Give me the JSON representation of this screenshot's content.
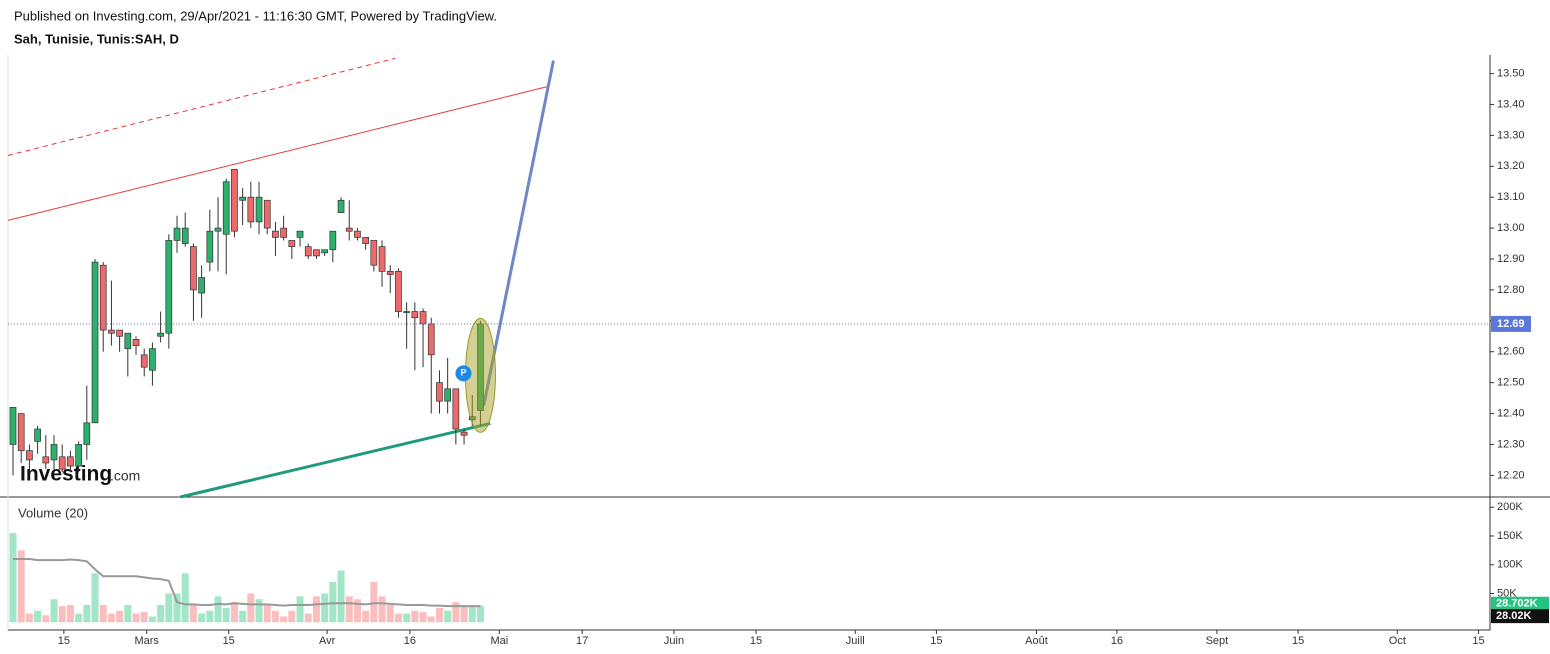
{
  "header": {
    "published": "Published on Investing.com, 29/Apr/2021 - 11:16:30 GMT, Powered by TradingView.",
    "symbol": "Sah, Tunisie, Tunis:SAH, D"
  },
  "logo": {
    "name": "Investing",
    "suffix": ".com"
  },
  "chart_data": [
    {
      "type": "candlestick",
      "up_color": "#2db06c",
      "down_color": "#ee6a6a",
      "last_price_color": "#5b78d8",
      "x": [
        0,
        1,
        2,
        3,
        4,
        5,
        6,
        7,
        8,
        9,
        10,
        11,
        12,
        13,
        14,
        15,
        16,
        17,
        18,
        19,
        20,
        21,
        22,
        23,
        24,
        25,
        26,
        27,
        28,
        29,
        30,
        31,
        32,
        33,
        34,
        35,
        36,
        37,
        38,
        39,
        40,
        41,
        42,
        43,
        44,
        45,
        46,
        47,
        48,
        49,
        50,
        51,
        52,
        53,
        54,
        55,
        56,
        57
      ],
      "open": [
        12.3,
        12.4,
        12.28,
        12.31,
        12.26,
        12.25,
        12.26,
        12.26,
        12.23,
        12.3,
        12.37,
        12.88,
        12.67,
        12.67,
        12.61,
        12.64,
        12.59,
        12.54,
        12.65,
        12.66,
        12.96,
        12.95,
        12.94,
        12.79,
        12.89,
        12.99,
        12.98,
        13.19,
        13.09,
        13.1,
        13.02,
        13.09,
        12.99,
        13.0,
        12.96,
        12.97,
        12.94,
        12.93,
        12.92,
        12.93,
        13.05,
        13.0,
        12.99,
        12.97,
        12.96,
        12.94,
        12.86,
        12.86,
        12.73,
        12.73,
        12.73,
        12.69,
        12.5,
        12.44,
        12.48,
        12.34,
        12.38,
        12.41
      ],
      "high": [
        12.42,
        12.4,
        12.3,
        12.36,
        12.33,
        12.33,
        12.3,
        12.28,
        12.31,
        12.49,
        12.9,
        12.89,
        12.83,
        12.67,
        12.66,
        12.65,
        12.61,
        12.63,
        12.73,
        12.98,
        13.04,
        13.05,
        12.95,
        12.88,
        13.06,
        13.1,
        13.16,
        13.19,
        13.13,
        13.15,
        13.15,
        13.09,
        13.02,
        13.04,
        12.96,
        12.99,
        12.95,
        12.93,
        12.93,
        12.99,
        13.1,
        13.09,
        13.0,
        12.97,
        12.96,
        12.96,
        12.88,
        12.87,
        12.76,
        12.76,
        12.74,
        12.71,
        12.54,
        12.58,
        12.48,
        12.35,
        12.46,
        12.7
      ],
      "low": [
        12.2,
        12.24,
        12.22,
        12.27,
        12.22,
        12.22,
        12.21,
        12.21,
        12.21,
        12.25,
        12.37,
        12.6,
        12.62,
        12.6,
        12.52,
        12.59,
        12.52,
        12.49,
        12.63,
        12.61,
        12.92,
        12.94,
        12.7,
        12.71,
        12.86,
        12.86,
        12.85,
        12.97,
        13.01,
        13.0,
        12.98,
        12.98,
        12.91,
        12.96,
        12.9,
        12.94,
        12.9,
        12.9,
        12.91,
        12.89,
        13.05,
        12.96,
        12.96,
        12.93,
        12.86,
        12.81,
        12.79,
        12.71,
        12.61,
        12.54,
        12.55,
        12.4,
        12.4,
        12.4,
        12.3,
        12.3,
        12.36,
        12.36
      ],
      "close": [
        12.42,
        12.28,
        12.25,
        12.35,
        12.24,
        12.3,
        12.22,
        12.23,
        12.3,
        12.37,
        12.89,
        12.67,
        12.66,
        12.65,
        12.66,
        12.62,
        12.55,
        12.61,
        12.66,
        12.96,
        13.0,
        13.0,
        12.8,
        12.84,
        12.99,
        13.0,
        13.15,
        12.99,
        13.1,
        13.02,
        13.1,
        13.0,
        12.97,
        12.97,
        12.94,
        12.99,
        12.91,
        12.91,
        12.93,
        12.99,
        13.09,
        12.99,
        12.97,
        12.95,
        12.88,
        12.86,
        12.85,
        12.73,
        12.73,
        12.71,
        12.69,
        12.59,
        12.44,
        12.48,
        12.35,
        12.33,
        12.39,
        12.69
      ],
      "trend_lines": [
        {
          "color": "#e53935",
          "dashed": false,
          "width": 1,
          "x": [
            -0.61,
            65.2
          ],
          "y": [
            13.025,
            13.458
          ]
        },
        {
          "color": "#e53935",
          "dashed": true,
          "width": 1,
          "x": [
            -0.61,
            46.6
          ],
          "y": [
            13.235,
            13.549
          ]
        },
        {
          "color": "#1f9a7e",
          "dashed": false,
          "width": 3,
          "x": [
            20.4,
            58.2
          ],
          "y": [
            12.13,
            12.368
          ]
        },
        {
          "color": "#6f86c8",
          "dashed": false,
          "width": 3,
          "x": [
            57.4,
            65.9
          ],
          "y": [
            12.426,
            13.542
          ]
        }
      ],
      "xlim": [
        -0.61,
        180.1
      ],
      "ylim": [
        12.13,
        13.56
      ],
      "yticks": [
        {
          "value": 12.2,
          "label": "12.20"
        },
        {
          "value": 12.3,
          "label": "12.30"
        },
        {
          "value": 12.4,
          "label": "12.40"
        },
        {
          "value": 12.5,
          "label": "12.50"
        },
        {
          "value": 12.6,
          "label": "12.60"
        },
        {
          "value": 12.7,
          "label": "12.70"
        },
        {
          "value": 12.8,
          "label": "12.80"
        },
        {
          "value": 12.9,
          "label": "12.90"
        },
        {
          "value": 13.0,
          "label": "13.00"
        },
        {
          "value": 13.1,
          "label": "13.10"
        },
        {
          "value": 13.2,
          "label": "13.20"
        },
        {
          "value": 13.3,
          "label": "13.30"
        },
        {
          "value": 13.4,
          "label": "13.40"
        },
        {
          "value": 13.5,
          "label": "13.50"
        }
      ]
    },
    {
      "type": "bar",
      "title": "Volume (20)",
      "up_color": "rgba(45,200,130,0.45)",
      "down_color": "rgba(245,110,110,0.45)",
      "x": [
        0,
        1,
        2,
        3,
        4,
        5,
        6,
        7,
        8,
        9,
        10,
        11,
        12,
        13,
        14,
        15,
        16,
        17,
        18,
        19,
        20,
        21,
        22,
        23,
        24,
        25,
        26,
        27,
        28,
        29,
        30,
        31,
        32,
        33,
        34,
        35,
        36,
        37,
        38,
        39,
        40,
        41,
        42,
        43,
        44,
        45,
        46,
        47,
        48,
        49,
        50,
        51,
        52,
        53,
        54,
        55,
        56,
        57
      ],
      "series": [
        {
          "name": "Volume",
          "badge_color": "#26c281",
          "values": [
            155000,
            125000,
            15000,
            20000,
            12000,
            40000,
            28000,
            30000,
            15000,
            30000,
            85000,
            30000,
            15000,
            20000,
            30000,
            15000,
            18000,
            10000,
            30000,
            50000,
            50000,
            85000,
            30000,
            15000,
            20000,
            45000,
            25000,
            35000,
            20000,
            50000,
            40000,
            30000,
            20000,
            10000,
            20000,
            45000,
            15000,
            45000,
            50000,
            70000,
            90000,
            45000,
            40000,
            20000,
            70000,
            45000,
            30000,
            15000,
            15000,
            20000,
            18000,
            10000,
            25000,
            20000,
            35000,
            28000,
            30000,
            28702
          ],
          "value_labels": [
            null,
            null,
            null,
            null,
            null,
            null,
            null,
            null,
            null,
            null,
            null,
            null,
            null,
            null,
            null,
            null,
            null,
            null,
            null,
            null,
            null,
            null,
            null,
            null,
            null,
            null,
            null,
            null,
            null,
            null,
            null,
            null,
            null,
            null,
            null,
            null,
            null,
            null,
            null,
            null,
            null,
            null,
            null,
            null,
            null,
            null,
            null,
            null,
            null,
            null,
            null,
            null,
            null,
            null,
            null,
            null,
            null,
            "28.702K"
          ]
        },
        {
          "name": "MA",
          "color": "#999999",
          "badge_color": "#111111",
          "values": [
            110000,
            110000,
            110000,
            108000,
            108000,
            108000,
            108000,
            109000,
            108000,
            106000,
            92000,
            80000,
            80000,
            80000,
            80000,
            80000,
            78000,
            76000,
            75000,
            72000,
            35000,
            31000,
            31000,
            30000,
            30000,
            32000,
            31000,
            33000,
            32000,
            31000,
            31000,
            31000,
            30000,
            29000,
            30000,
            30000,
            30000,
            31000,
            32000,
            33000,
            33000,
            33000,
            32000,
            31000,
            33000,
            33000,
            32000,
            31000,
            30000,
            30000,
            30000,
            29000,
            29000,
            28000,
            28000,
            28000,
            28000,
            28020
          ],
          "value_labels": [
            null,
            null,
            null,
            null,
            null,
            null,
            null,
            null,
            null,
            null,
            null,
            null,
            null,
            null,
            null,
            null,
            null,
            null,
            null,
            null,
            null,
            null,
            null,
            null,
            null,
            null,
            null,
            null,
            null,
            null,
            null,
            null,
            null,
            null,
            null,
            null,
            null,
            null,
            null,
            null,
            null,
            null,
            null,
            null,
            null,
            null,
            null,
            null,
            null,
            null,
            null,
            null,
            null,
            null,
            null,
            null,
            null,
            "28.02K"
          ]
        }
      ],
      "xlim": [
        -0.61,
        180.1
      ],
      "ylim": [
        -10000,
        216000
      ],
      "yticks": [
        {
          "value": 50000,
          "label": "50K"
        },
        {
          "value": 100000,
          "label": "100K"
        },
        {
          "value": 150000,
          "label": "150K"
        },
        {
          "value": 200000,
          "label": "200K"
        }
      ],
      "xticks": [
        {
          "value": 6.2,
          "label": "15"
        },
        {
          "value": 16.3,
          "label": "Mars"
        },
        {
          "value": 26.3,
          "label": "15"
        },
        {
          "value": 38.3,
          "label": "Avr"
        },
        {
          "value": 48.4,
          "label": "16"
        },
        {
          "value": 59.3,
          "label": "Mai"
        },
        {
          "value": 69.4,
          "label": "17"
        },
        {
          "value": 80.6,
          "label": "Juin"
        },
        {
          "value": 90.6,
          "label": "15"
        },
        {
          "value": 102.7,
          "label": "Juill"
        },
        {
          "value": 112.6,
          "label": "15"
        },
        {
          "value": 124.8,
          "label": "Août"
        },
        {
          "value": 134.6,
          "label": "16"
        },
        {
          "value": 146.8,
          "label": "Sept"
        },
        {
          "value": 156.7,
          "label": "15"
        },
        {
          "value": 168.8,
          "label": "Oct"
        },
        {
          "value": 178.7,
          "label": "15"
        }
      ]
    }
  ]
}
